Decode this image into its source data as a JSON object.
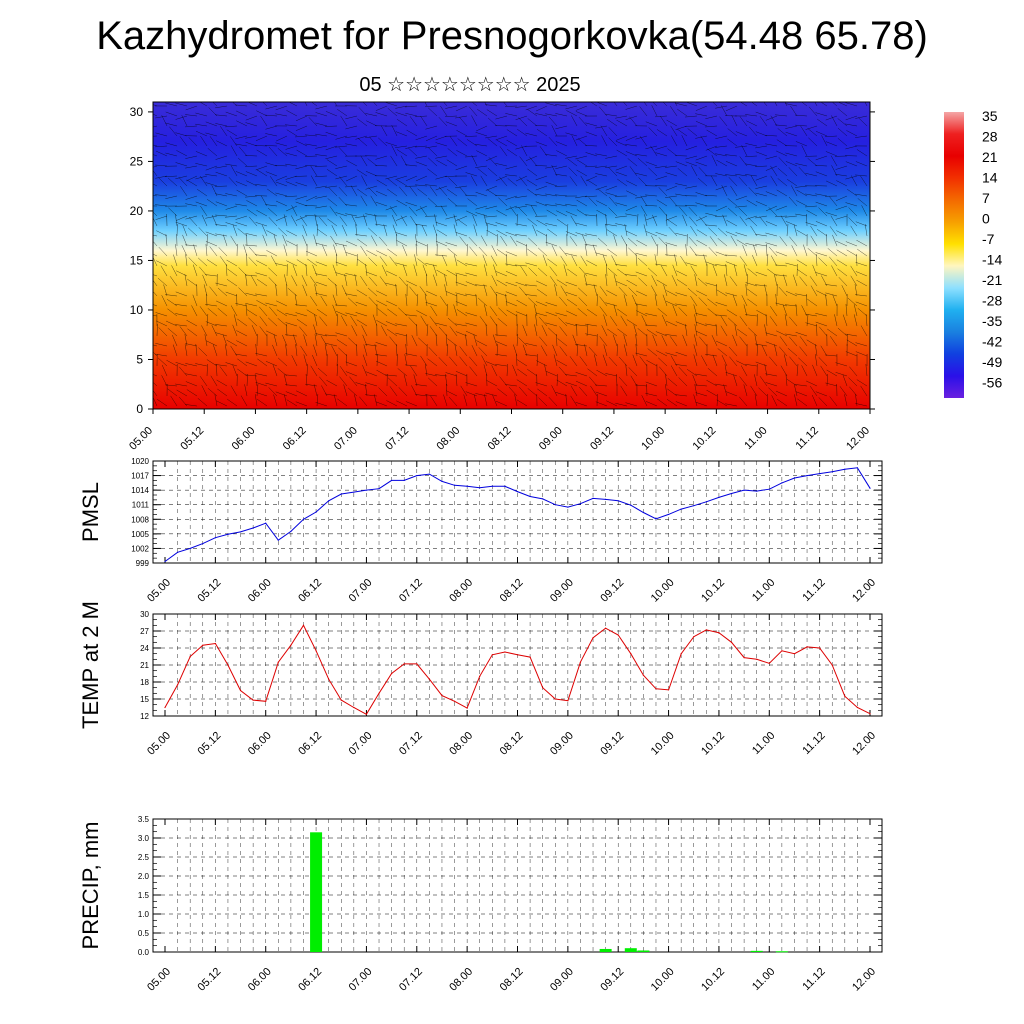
{
  "title": "Kazhydromet for Presnogorkovka(54.48 65.78)",
  "subtitle": "05 ☆☆☆☆☆☆☆☆ 2025",
  "time_labels": [
    "05.00",
    "05.12",
    "06.00",
    "06.12",
    "07.00",
    "07.12",
    "08.00",
    "08.12",
    "09.00",
    "09.12",
    "10.00",
    "10.12",
    "11.00",
    "11.12",
    "12.00"
  ],
  "colors": {
    "pmsl_line": "#0000dd",
    "temp_line": "#dd0000",
    "precip_bar": "#00ee00"
  },
  "chart_data": [
    {
      "type": "heatmap",
      "description_key": "vertical temperature cross-section with wind barbs",
      "xlabel": "",
      "ylabel": "",
      "ylim": [
        0,
        30
      ],
      "yticks": [
        0,
        5,
        10,
        15,
        20,
        25,
        30
      ],
      "colorbar": {
        "labels": [
          "35",
          "28",
          "21",
          "14",
          "7",
          "0",
          "-7",
          "-14",
          "-21",
          "-28",
          "-35",
          "-42",
          "-49",
          "-56"
        ],
        "colors": [
          "#f4a6a6",
          "#ee2020",
          "#e80000",
          "#f23000",
          "#f46a00",
          "#f7a000",
          "#ffe000",
          "#fff6c0",
          "#8ee0ff",
          "#20b0f0",
          "#1a80e0",
          "#1040e0",
          "#2a10e8",
          "#6a20e0"
        ]
      },
      "bands": [
        {
          "alt": 0,
          "color": "#e80000"
        },
        {
          "alt": 5,
          "color": "#f23a00"
        },
        {
          "alt": 10,
          "color": "#f59000"
        },
        {
          "alt": 14.5,
          "color": "#ffe040"
        },
        {
          "alt": 16,
          "color": "#fff7d0"
        },
        {
          "alt": 18,
          "color": "#6fd0ff"
        },
        {
          "alt": 20,
          "color": "#1f8ae8"
        },
        {
          "alt": 23,
          "color": "#1a3ee0"
        },
        {
          "alt": 27,
          "color": "#2520e0"
        },
        {
          "alt": 31,
          "color": "#3a2cd8"
        }
      ]
    },
    {
      "type": "line",
      "ylabel": "PMSL",
      "ylim": [
        999,
        1020
      ],
      "yticks": [
        999,
        1002,
        1005,
        1008,
        1011,
        1014,
        1017,
        1020
      ],
      "x": [
        0,
        3,
        6,
        9,
        12,
        15,
        18,
        21,
        24,
        27,
        30,
        33,
        36,
        39,
        42,
        45,
        48,
        51,
        54,
        57,
        60,
        63,
        66,
        69,
        72,
        75,
        78,
        81,
        84,
        87,
        90,
        93,
        96,
        99,
        102,
        105,
        108,
        111,
        114,
        117,
        120,
        123,
        126,
        129,
        132,
        135,
        138,
        141,
        144,
        147,
        150,
        153,
        156,
        159,
        162,
        165,
        168
      ],
      "values": [
        999.3,
        1001.2,
        1002.0,
        1003.0,
        1004.2,
        1004.9,
        1005.4,
        1006.2,
        1007.2,
        1003.7,
        1005.5,
        1008.0,
        1009.5,
        1011.8,
        1013.2,
        1013.6,
        1014.0,
        1014.3,
        1016.0,
        1016.0,
        1017.0,
        1017.3,
        1015.8,
        1015.0,
        1014.8,
        1014.5,
        1014.8,
        1014.8,
        1013.7,
        1012.7,
        1012.2,
        1011.0,
        1010.5,
        1011.2,
        1012.3,
        1012.1,
        1011.8,
        1010.9,
        1009.4,
        1008.1,
        1009.0,
        1010.1,
        1010.8,
        1011.6,
        1012.5,
        1013.3,
        1014.0,
        1013.8,
        1014.2,
        1015.5,
        1016.5,
        1017.0,
        1017.4,
        1017.8,
        1018.3,
        1018.6,
        1014.4
      ]
    },
    {
      "type": "line",
      "ylabel": "TEMP at 2 M",
      "ylim": [
        12,
        30
      ],
      "yticks": [
        12,
        15,
        18,
        21,
        24,
        27,
        30
      ],
      "x": [
        0,
        3,
        6,
        9,
        12,
        15,
        18,
        21,
        24,
        27,
        30,
        33,
        36,
        39,
        42,
        45,
        48,
        51,
        54,
        57,
        60,
        63,
        66,
        69,
        72,
        75,
        78,
        81,
        84,
        87,
        90,
        93,
        96,
        99,
        102,
        105,
        108,
        111,
        114,
        117,
        120,
        123,
        126,
        129,
        132,
        135,
        138,
        141,
        144,
        147,
        150,
        153,
        156,
        159,
        162,
        165,
        168
      ],
      "values": [
        13.5,
        17.5,
        22.5,
        24.5,
        24.8,
        21.0,
        16.5,
        14.8,
        14.6,
        21.5,
        24.5,
        28.0,
        23.5,
        18.5,
        14.8,
        13.5,
        12.3,
        16.0,
        19.5,
        21.2,
        21.2,
        18.5,
        15.6,
        14.6,
        13.4,
        19.0,
        22.8,
        23.3,
        22.8,
        22.4,
        17.0,
        15.0,
        14.7,
        21.5,
        25.8,
        27.5,
        26.3,
        23.0,
        19.2,
        16.8,
        16.6,
        23.0,
        26.0,
        27.2,
        26.7,
        25.0,
        22.3,
        22.0,
        21.3,
        23.5,
        23.0,
        24.2,
        24.0,
        21.0,
        15.5,
        13.5,
        12.4
      ]
    },
    {
      "type": "bar",
      "ylabel": "PRECIP, mm",
      "ylim": [
        0,
        3.5
      ],
      "yticks": [
        "0.0",
        "0.5",
        "1.0",
        "1.5",
        "2.0",
        "2.5",
        "3.0",
        "3.5"
      ],
      "x": [
        36,
        105,
        111,
        114,
        141,
        147
      ],
      "values": [
        3.15,
        0.08,
        0.1,
        0.04,
        0.03,
        0.02
      ]
    }
  ]
}
